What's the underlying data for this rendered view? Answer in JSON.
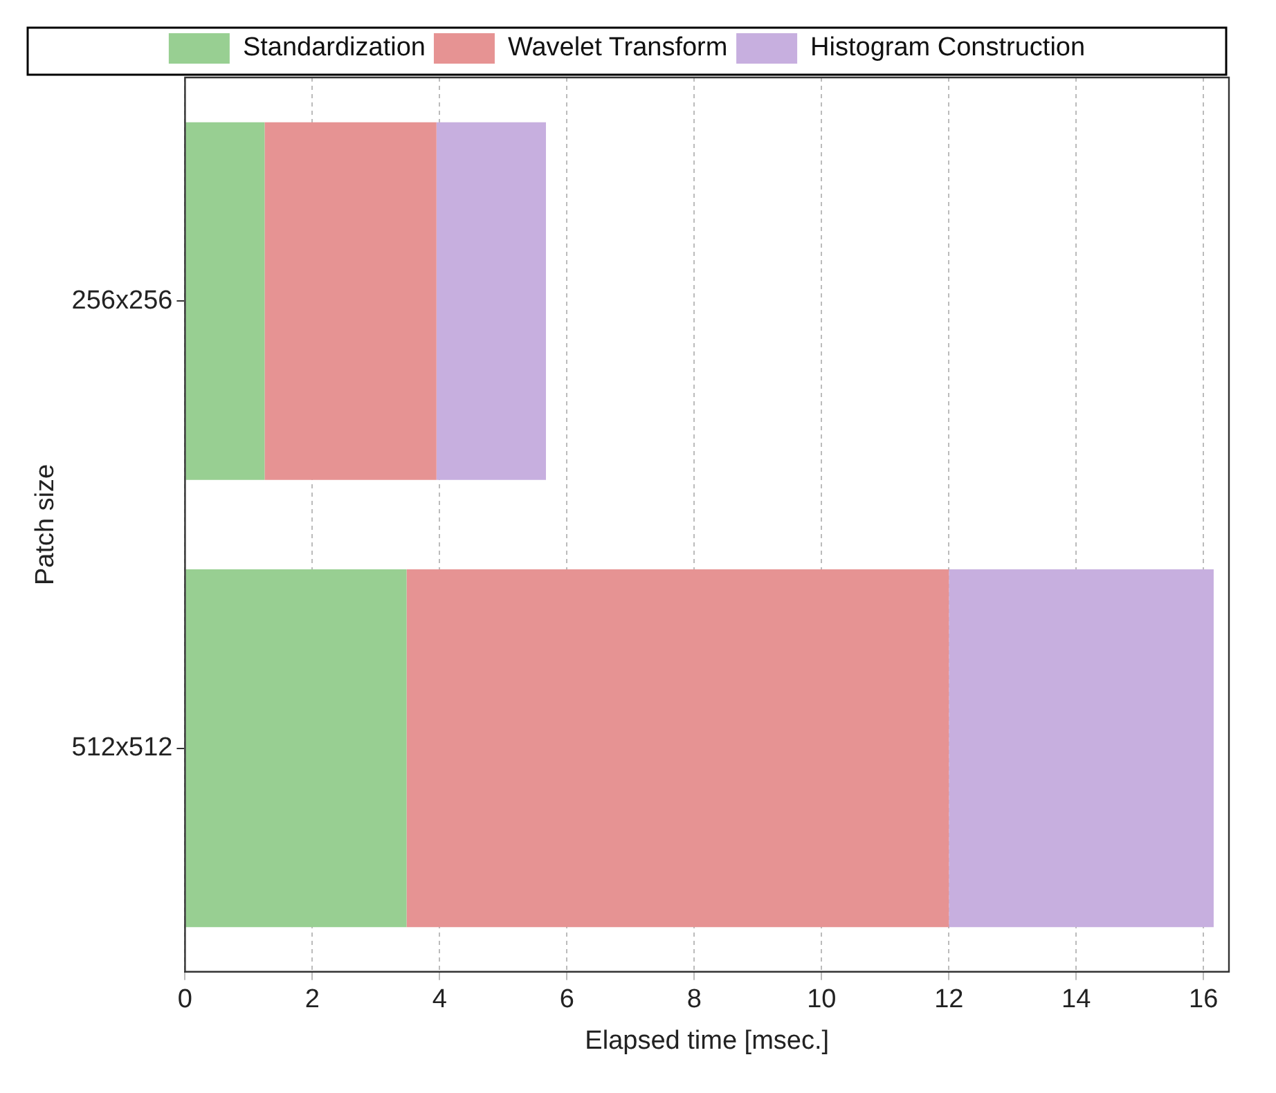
{
  "chart_data": {
    "type": "bar",
    "orientation": "horizontal",
    "stacked": true,
    "xlabel": "Elapsed time [msec.]",
    "ylabel": "Patch size",
    "categories": [
      "256x256",
      "512x512"
    ],
    "series": [
      {
        "name": "Standardization",
        "color": "#98cf92",
        "values": [
          1.25,
          3.48
        ]
      },
      {
        "name": "Wavelet Transform",
        "color": "#e69393",
        "values": [
          2.7,
          8.52
        ]
      },
      {
        "name": "Histogram Construction",
        "color": "#c7afdf",
        "values": [
          1.72,
          4.16
        ]
      }
    ],
    "xlim": [
      0,
      16.4
    ],
    "xticks": [
      0,
      2,
      4,
      6,
      8,
      10,
      12,
      14,
      16
    ],
    "grid": "x",
    "legend": "top"
  }
}
